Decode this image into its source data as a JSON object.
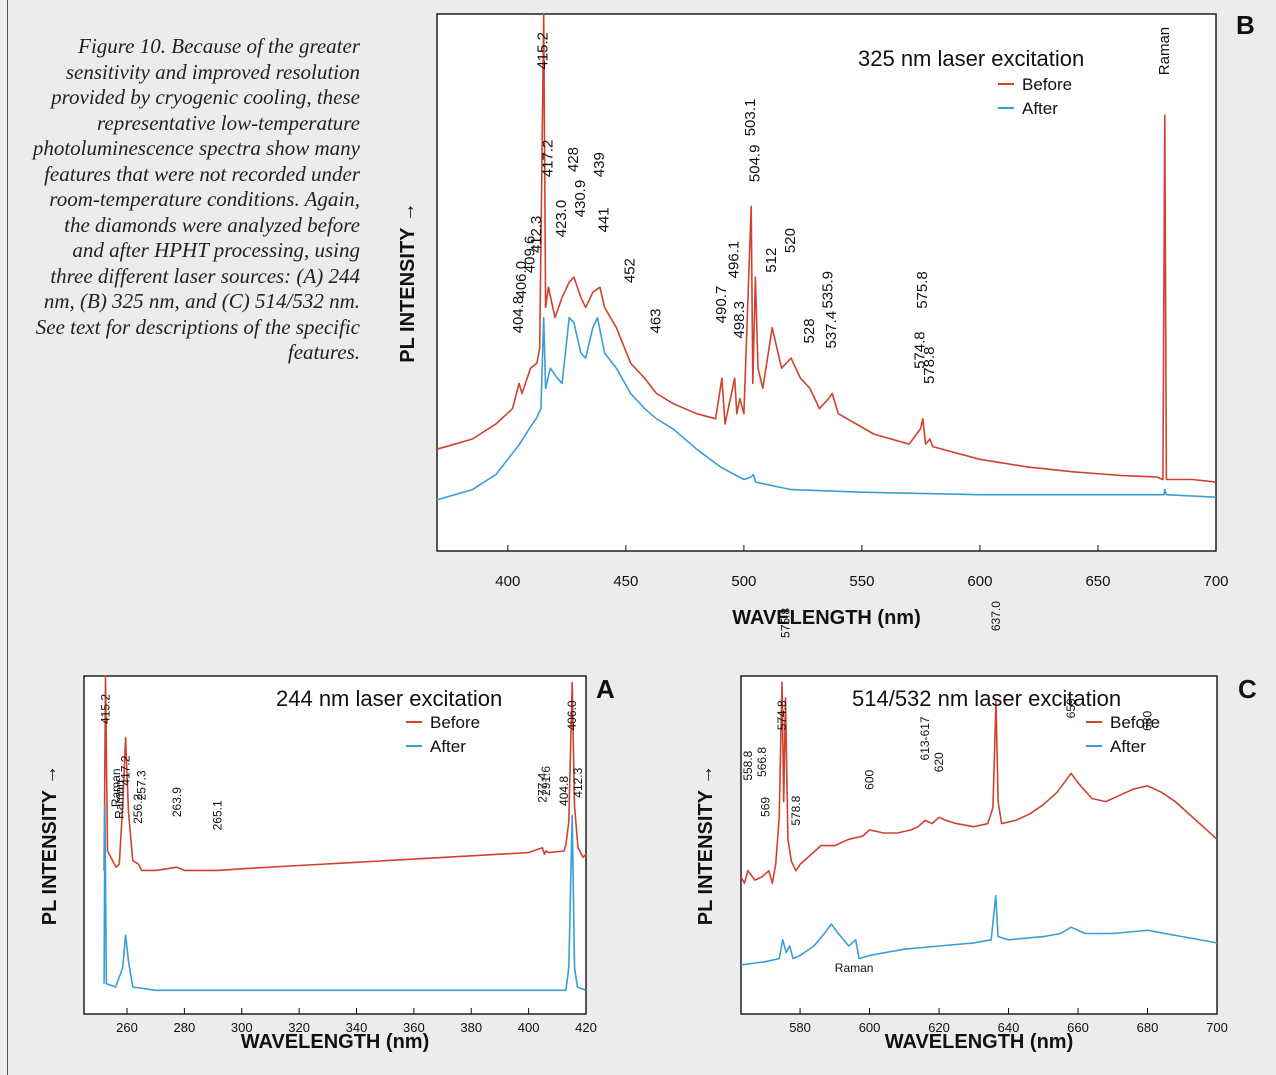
{
  "caption": "Figure 10. Because of the greater sensitivity and improved resolution provided by cryogenic cooling, these representative low-temperature photoluminescence spectra show many features that were not recorded under room-temperature conditions. Again, the diamonds were analyzed before and after HPHT processing, using three different laser sources: (A) 244 nm, (B) 325 nm, and (C) 514/532 nm. See text for descriptions of the specific features.",
  "colors": {
    "before": "#d0422e",
    "after": "#3a9ed6"
  },
  "chart_data": [
    {
      "id": "B",
      "type": "line",
      "panel_letter": "B",
      "title": "325 nm laser excitation",
      "xlabel": "WAVELENGTH (nm)",
      "ylabel": "PL INTENSITY →",
      "xlim": [
        370,
        700
      ],
      "ylim": [
        0,
        100
      ],
      "xticks": [
        400,
        450,
        500,
        550,
        600,
        650,
        700
      ],
      "legend": {
        "placement": "top-right",
        "entries": [
          "Before",
          "After"
        ]
      },
      "series": [
        {
          "name": "Before",
          "color": "#d0422e",
          "points": [
            [
              370,
              14
            ],
            [
              385,
              16
            ],
            [
              395,
              19
            ],
            [
              402,
              22
            ],
            [
              404.8,
              27
            ],
            [
              406,
              25
            ],
            [
              409.6,
              30
            ],
            [
              412.3,
              31
            ],
            [
              413.5,
              34
            ],
            [
              415.2,
              100
            ],
            [
              416,
              42
            ],
            [
              417.2,
              46
            ],
            [
              420,
              40
            ],
            [
              423,
              44
            ],
            [
              426,
              47
            ],
            [
              428,
              48
            ],
            [
              430.9,
              44
            ],
            [
              433,
              42
            ],
            [
              436,
              45
            ],
            [
              439,
              46
            ],
            [
              441,
              42
            ],
            [
              446,
              38
            ],
            [
              452,
              31
            ],
            [
              458,
              28
            ],
            [
              463,
              25
            ],
            [
              470,
              23
            ],
            [
              480,
              21
            ],
            [
              488,
              20
            ],
            [
              490.7,
              28
            ],
            [
              492,
              19
            ],
            [
              496.1,
              28
            ],
            [
              497,
              21
            ],
            [
              498.3,
              24
            ],
            [
              500,
              21
            ],
            [
              503.1,
              62
            ],
            [
              503.8,
              27
            ],
            [
              504.9,
              48
            ],
            [
              506,
              30
            ],
            [
              508,
              26
            ],
            [
              512,
              38
            ],
            [
              516,
              30
            ],
            [
              520,
              32
            ],
            [
              524,
              28
            ],
            [
              528,
              26
            ],
            [
              532,
              22
            ],
            [
              535.9,
              24
            ],
            [
              537.4,
              25
            ],
            [
              540,
              21
            ],
            [
              555,
              17
            ],
            [
              570,
              15
            ],
            [
              574.8,
              18
            ],
            [
              575.8,
              20
            ],
            [
              577,
              15
            ],
            [
              578.8,
              16
            ],
            [
              580,
              14.5
            ],
            [
              600,
              12
            ],
            [
              620,
              10.5
            ],
            [
              640,
              9.5
            ],
            [
              660,
              8.8
            ],
            [
              675,
              8.5
            ],
            [
              677.5,
              8
            ],
            [
              678.3,
              80
            ],
            [
              679,
              8
            ],
            [
              690,
              8
            ],
            [
              700,
              7.5
            ]
          ]
        },
        {
          "name": "After",
          "color": "#3a9ed6",
          "points": [
            [
              370,
              4
            ],
            [
              385,
              6
            ],
            [
              395,
              9
            ],
            [
              400,
              12
            ],
            [
              405,
              15
            ],
            [
              409,
              18
            ],
            [
              412,
              20
            ],
            [
              414,
              22
            ],
            [
              415.2,
              40
            ],
            [
              416,
              26
            ],
            [
              418,
              30
            ],
            [
              421,
              28
            ],
            [
              423,
              27
            ],
            [
              426,
              40
            ],
            [
              428,
              39
            ],
            [
              430.9,
              33
            ],
            [
              433,
              32
            ],
            [
              436,
              38
            ],
            [
              438,
              40
            ],
            [
              441,
              33
            ],
            [
              446,
              30
            ],
            [
              452,
              25
            ],
            [
              458,
              22
            ],
            [
              463,
              20
            ],
            [
              470,
              18
            ],
            [
              480,
              14
            ],
            [
              490,
              10.5
            ],
            [
              500,
              8
            ],
            [
              503,
              8.5
            ],
            [
              504,
              9
            ],
            [
              505,
              7.5
            ],
            [
              520,
              6
            ],
            [
              550,
              5.5
            ],
            [
              600,
              5
            ],
            [
              650,
              5
            ],
            [
              678,
              5
            ],
            [
              678.3,
              6
            ],
            [
              679,
              5
            ],
            [
              700,
              4.5
            ]
          ]
        }
      ],
      "annotations": [
        "404.8",
        "406.0",
        "409.6",
        "412.3",
        "415.2",
        "417.2",
        "423.0",
        "428",
        "430.9",
        "439",
        "441",
        "452",
        "463",
        "490.7",
        "496.1",
        "498.3",
        "503.1",
        "504.9",
        "512",
        "520",
        "528",
        "535.9",
        "537.4",
        "574.8",
        "575.8",
        "578.8",
        "Raman"
      ]
    },
    {
      "id": "A",
      "type": "line",
      "panel_letter": "A",
      "title": "244 nm laser excitation",
      "xlabel": "WAVELENGTH (nm)",
      "ylabel": "PL INTENSITY →",
      "xlim": [
        245,
        420
      ],
      "ylim": [
        0,
        100
      ],
      "xticks": [
        260,
        280,
        300,
        320,
        340,
        360,
        380,
        400,
        420
      ],
      "legend": {
        "placement": "top-right",
        "entries": [
          "Before",
          "After"
        ]
      },
      "series": [
        {
          "name": "Before",
          "color": "#d0422e",
          "points": [
            [
              252,
              40
            ],
            [
              252.5,
              100
            ],
            [
              253.2,
              46
            ],
            [
              256.2,
              41
            ],
            [
              257.3,
              42
            ],
            [
              258.5,
              60
            ],
            [
              259.5,
              81
            ],
            [
              260.5,
              58
            ],
            [
              262,
              43
            ],
            [
              263.9,
              42
            ],
            [
              265.1,
              40
            ],
            [
              270,
              40
            ],
            [
              277.4,
              41
            ],
            [
              280,
              40
            ],
            [
              291.6,
              40
            ],
            [
              300,
              40.5
            ],
            [
              320,
              41.5
            ],
            [
              340,
              42.5
            ],
            [
              360,
              43.5
            ],
            [
              380,
              44.5
            ],
            [
              400,
              45.5
            ],
            [
              404.8,
              47
            ],
            [
              405.5,
              45
            ],
            [
              406,
              46
            ],
            [
              407,
              45.5
            ],
            [
              412.3,
              46
            ],
            [
              413,
              48
            ],
            [
              414,
              55
            ],
            [
              415.2,
              98
            ],
            [
              416,
              60
            ],
            [
              417.2,
              47
            ],
            [
              419,
              44
            ],
            [
              420,
              45
            ]
          ]
        },
        {
          "name": "After",
          "color": "#3a9ed6",
          "points": [
            [
              252,
              5
            ],
            [
              252.3,
              60
            ],
            [
              252.8,
              5
            ],
            [
              256,
              4
            ],
            [
              258.5,
              10
            ],
            [
              259.5,
              20
            ],
            [
              260.5,
              12
            ],
            [
              262,
              4
            ],
            [
              270,
              3
            ],
            [
              300,
              3
            ],
            [
              350,
              3
            ],
            [
              400,
              3
            ],
            [
              413,
              3
            ],
            [
              414,
              10
            ],
            [
              415.2,
              57
            ],
            [
              416,
              10
            ],
            [
              417,
              4
            ],
            [
              420,
              3
            ]
          ]
        }
      ],
      "annotations": [
        "Raman",
        "Raman",
        "256.2",
        "257.3",
        "263.9",
        "265.1",
        "277.4",
        "291.6",
        "404.8",
        "406.0",
        "412.3",
        "415.2",
        "417.2"
      ]
    },
    {
      "id": "C",
      "type": "line",
      "panel_letter": "C",
      "title": "514/532 nm laser excitation",
      "xlabel": "WAVELENGTH (nm)",
      "ylabel": "PL INTENSITY →",
      "xlim": [
        563,
        700
      ],
      "ylim": [
        0,
        100
      ],
      "xticks": [
        580,
        600,
        620,
        640,
        660,
        680,
        700
      ],
      "legend": {
        "placement": "top-right",
        "entries": [
          "Before",
          "After"
        ]
      },
      "series": [
        {
          "name": "Before",
          "color": "#d0422e",
          "points": [
            [
              563,
              36
            ],
            [
              564,
              34
            ],
            [
              565,
              38
            ],
            [
              567,
              35
            ],
            [
              569,
              36
            ],
            [
              571,
              38
            ],
            [
              572,
              34
            ],
            [
              573,
              40
            ],
            [
              574,
              55
            ],
            [
              574.8,
              98
            ],
            [
              575.3,
              60
            ],
            [
              575.8,
              93
            ],
            [
              576.5,
              48
            ],
            [
              577.5,
              41
            ],
            [
              578.8,
              38
            ],
            [
              580,
              40
            ],
            [
              583,
              43
            ],
            [
              586,
              46
            ],
            [
              590,
              46
            ],
            [
              594,
              48
            ],
            [
              598,
              49
            ],
            [
              600,
              51
            ],
            [
              604,
              50
            ],
            [
              608,
              50
            ],
            [
              612,
              51
            ],
            [
              614,
              52
            ],
            [
              616,
              54
            ],
            [
              618,
              53
            ],
            [
              620,
              55
            ],
            [
              622,
              54
            ],
            [
              625,
              53
            ],
            [
              630,
              52
            ],
            [
              634,
              53
            ],
            [
              635.5,
              58
            ],
            [
              636.4,
              92
            ],
            [
              637,
              60
            ],
            [
              638,
              53
            ],
            [
              642,
              54
            ],
            [
              646,
              56
            ],
            [
              650,
              59
            ],
            [
              654,
              63
            ],
            [
              656,
              66
            ],
            [
              658,
              69
            ],
            [
              660,
              66
            ],
            [
              664,
              61
            ],
            [
              668,
              60
            ],
            [
              672,
              62
            ],
            [
              676,
              64
            ],
            [
              680,
              65
            ],
            [
              684,
              63
            ],
            [
              688,
              60
            ],
            [
              692,
              56
            ],
            [
              696,
              52
            ],
            [
              700,
              48
            ]
          ]
        },
        {
          "name": "After",
          "color": "#3a9ed6",
          "points": [
            [
              563,
              8
            ],
            [
              570,
              9
            ],
            [
              574,
              10
            ],
            [
              575,
              16
            ],
            [
              576,
              12
            ],
            [
              577,
              14
            ],
            [
              578,
              10
            ],
            [
              580,
              11
            ],
            [
              584,
              14
            ],
            [
              587,
              18
            ],
            [
              589,
              21
            ],
            [
              591,
              18
            ],
            [
              594,
              14
            ],
            [
              596,
              16
            ],
            [
              597,
              10
            ],
            [
              600,
              11
            ],
            [
              605,
              12
            ],
            [
              610,
              13
            ],
            [
              620,
              14
            ],
            [
              630,
              15
            ],
            [
              635,
              16
            ],
            [
              636.3,
              30
            ],
            [
              637,
              17
            ],
            [
              640,
              16
            ],
            [
              650,
              17
            ],
            [
              655,
              18
            ],
            [
              658,
              20
            ],
            [
              662,
              18
            ],
            [
              670,
              18
            ],
            [
              680,
              19
            ],
            [
              690,
              17
            ],
            [
              700,
              15
            ]
          ]
        }
      ],
      "annotations": [
        "558.8",
        "566.8",
        "569",
        "574.8",
        "575.8",
        "578.8",
        "600",
        "613-617",
        "620",
        "637.0",
        "659",
        "680",
        "Raman"
      ]
    }
  ]
}
